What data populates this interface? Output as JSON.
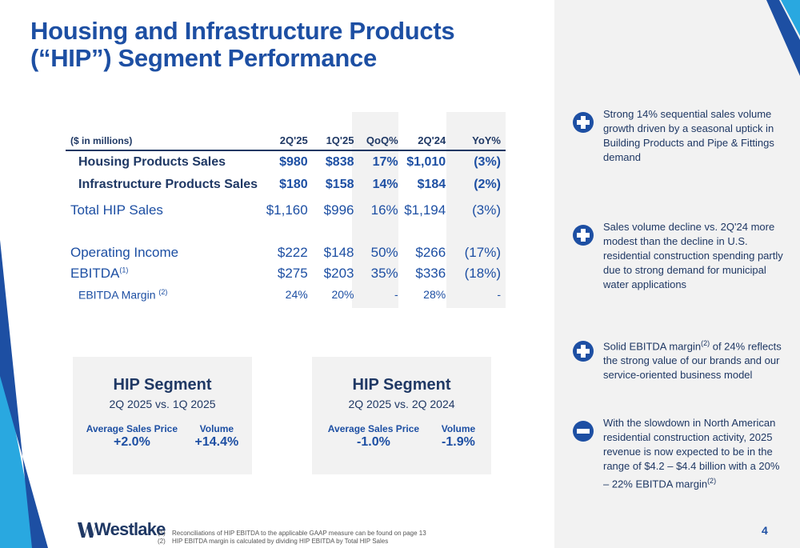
{
  "title": {
    "line1": "Housing and Infrastructure Products",
    "line2": "(“HIP”) Segment Performance"
  },
  "colors": {
    "brand_blue": "#1d4fa3",
    "navy": "#1f3864",
    "light_blue": "#29a8e0",
    "panel_gray": "#f2f2f2"
  },
  "table": {
    "units_label": "($ in millions)",
    "columns": [
      "2Q'25",
      "1Q'25",
      "QoQ%",
      "2Q'24",
      "YoY%"
    ],
    "rows": [
      {
        "label": "Housing Products Sales",
        "values": [
          "$980",
          "$838",
          "17%",
          "$1,010",
          "(3%)"
        ]
      },
      {
        "label": "Infrastructure Products Sales",
        "values": [
          "$180",
          "$158",
          "14%",
          "$184",
          "(2%)"
        ]
      },
      {
        "label": "Total HIP Sales",
        "values": [
          "$1,160",
          "$996",
          "16%",
          "$1,194",
          "(3%)"
        ]
      },
      {
        "label": "Operating Income",
        "values": [
          "$222",
          "$148",
          "50%",
          "$266",
          "(17%)"
        ]
      },
      {
        "label": "EBITDA",
        "sup": "(1)",
        "values": [
          "$275",
          "$203",
          "35%",
          "$336",
          "(18%)"
        ]
      },
      {
        "label": "EBITDA Margin",
        "sup": "(2)",
        "values": [
          "24%",
          "20%",
          "-",
          "28%",
          "-"
        ]
      }
    ]
  },
  "segments": [
    {
      "title": "HIP Segment",
      "subtitle": "2Q 2025 vs. 1Q 2025",
      "price_label": "Average Sales Price",
      "price_value": "+2.0%",
      "volume_label": "Volume",
      "volume_value": "+14.4%"
    },
    {
      "title": "HIP Segment",
      "subtitle": "2Q 2025 vs. 2Q 2024",
      "price_label": "Average Sales Price",
      "price_value": "-1.0%",
      "volume_label": "Volume",
      "volume_value": "-1.9%"
    }
  ],
  "bullets": [
    {
      "icon": "plus-icon",
      "text": "Strong 14% sequential sales volume growth driven by a seasonal uptick in Building Products and Pipe & Fittings demand"
    },
    {
      "icon": "plus-icon",
      "text": "Sales volume decline vs. 2Q'24 more modest than the decline in U.S. residential construction spending partly due to strong demand for municipal water applications"
    },
    {
      "icon": "plus-icon",
      "text_pre": "Solid EBITDA margin",
      "sup": "(2)",
      "text_post": " of 24% reflects the strong value of our brands and our service-oriented business model"
    },
    {
      "icon": "minus-icon",
      "text_pre": "With the slowdown in North American residential construction activity, 2025 revenue is now expected to be in the range of $4.2 – $4.4 billion with a 20% – 22% EBITDA margin",
      "sup": "(2)",
      "text_post": ""
    }
  ],
  "footer": {
    "logo": "Westlake",
    "footnotes": [
      {
        "num": "(1)",
        "text": "Reconciliations of HIP EBITDA to the applicable GAAP measure can be found on page 13"
      },
      {
        "num": "(2)",
        "text": "HIP EBITDA margin is calculated by dividing HIP EBITDA by Total HIP Sales"
      }
    ],
    "page_number": "4"
  }
}
